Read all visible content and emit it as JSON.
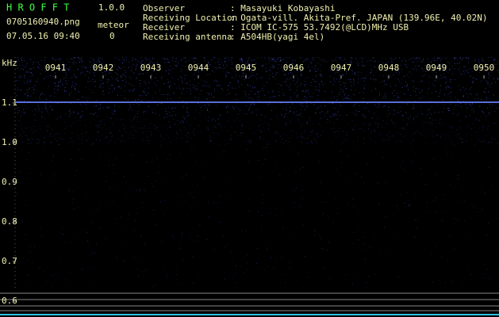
{
  "header": {
    "app_name": "H R O F F T",
    "version": "1.0.0",
    "file_name": "0705160940.png",
    "meteor_label": "meteor",
    "timestamp": "07.05.16 09:40",
    "meteor_count": "0"
  },
  "info": [
    {
      "label": "Observer",
      "value": ": Masayuki Kobayashi"
    },
    {
      "label": "Receiving Location",
      "value": ": Ogata-vill. Akita-Pref. JAPAN (139.96E, 40.02N)"
    },
    {
      "label": "Receiver",
      "value": ": ICOM IC-575 53.7492(@LCD)MHz USB"
    },
    {
      "label": "Receiving antenna",
      "value": ": A504HB(yagi 4el)"
    }
  ],
  "spectrogram": {
    "unit": "kHz",
    "y_labels": [
      "1.1",
      "1.0",
      "0.9",
      "0.8",
      "0.7",
      "0.6"
    ],
    "x_labels": [
      "0941",
      "0942",
      "0943",
      "0944",
      "0945",
      "0946",
      "0947",
      "0948",
      "0949",
      "0950"
    ]
  }
}
